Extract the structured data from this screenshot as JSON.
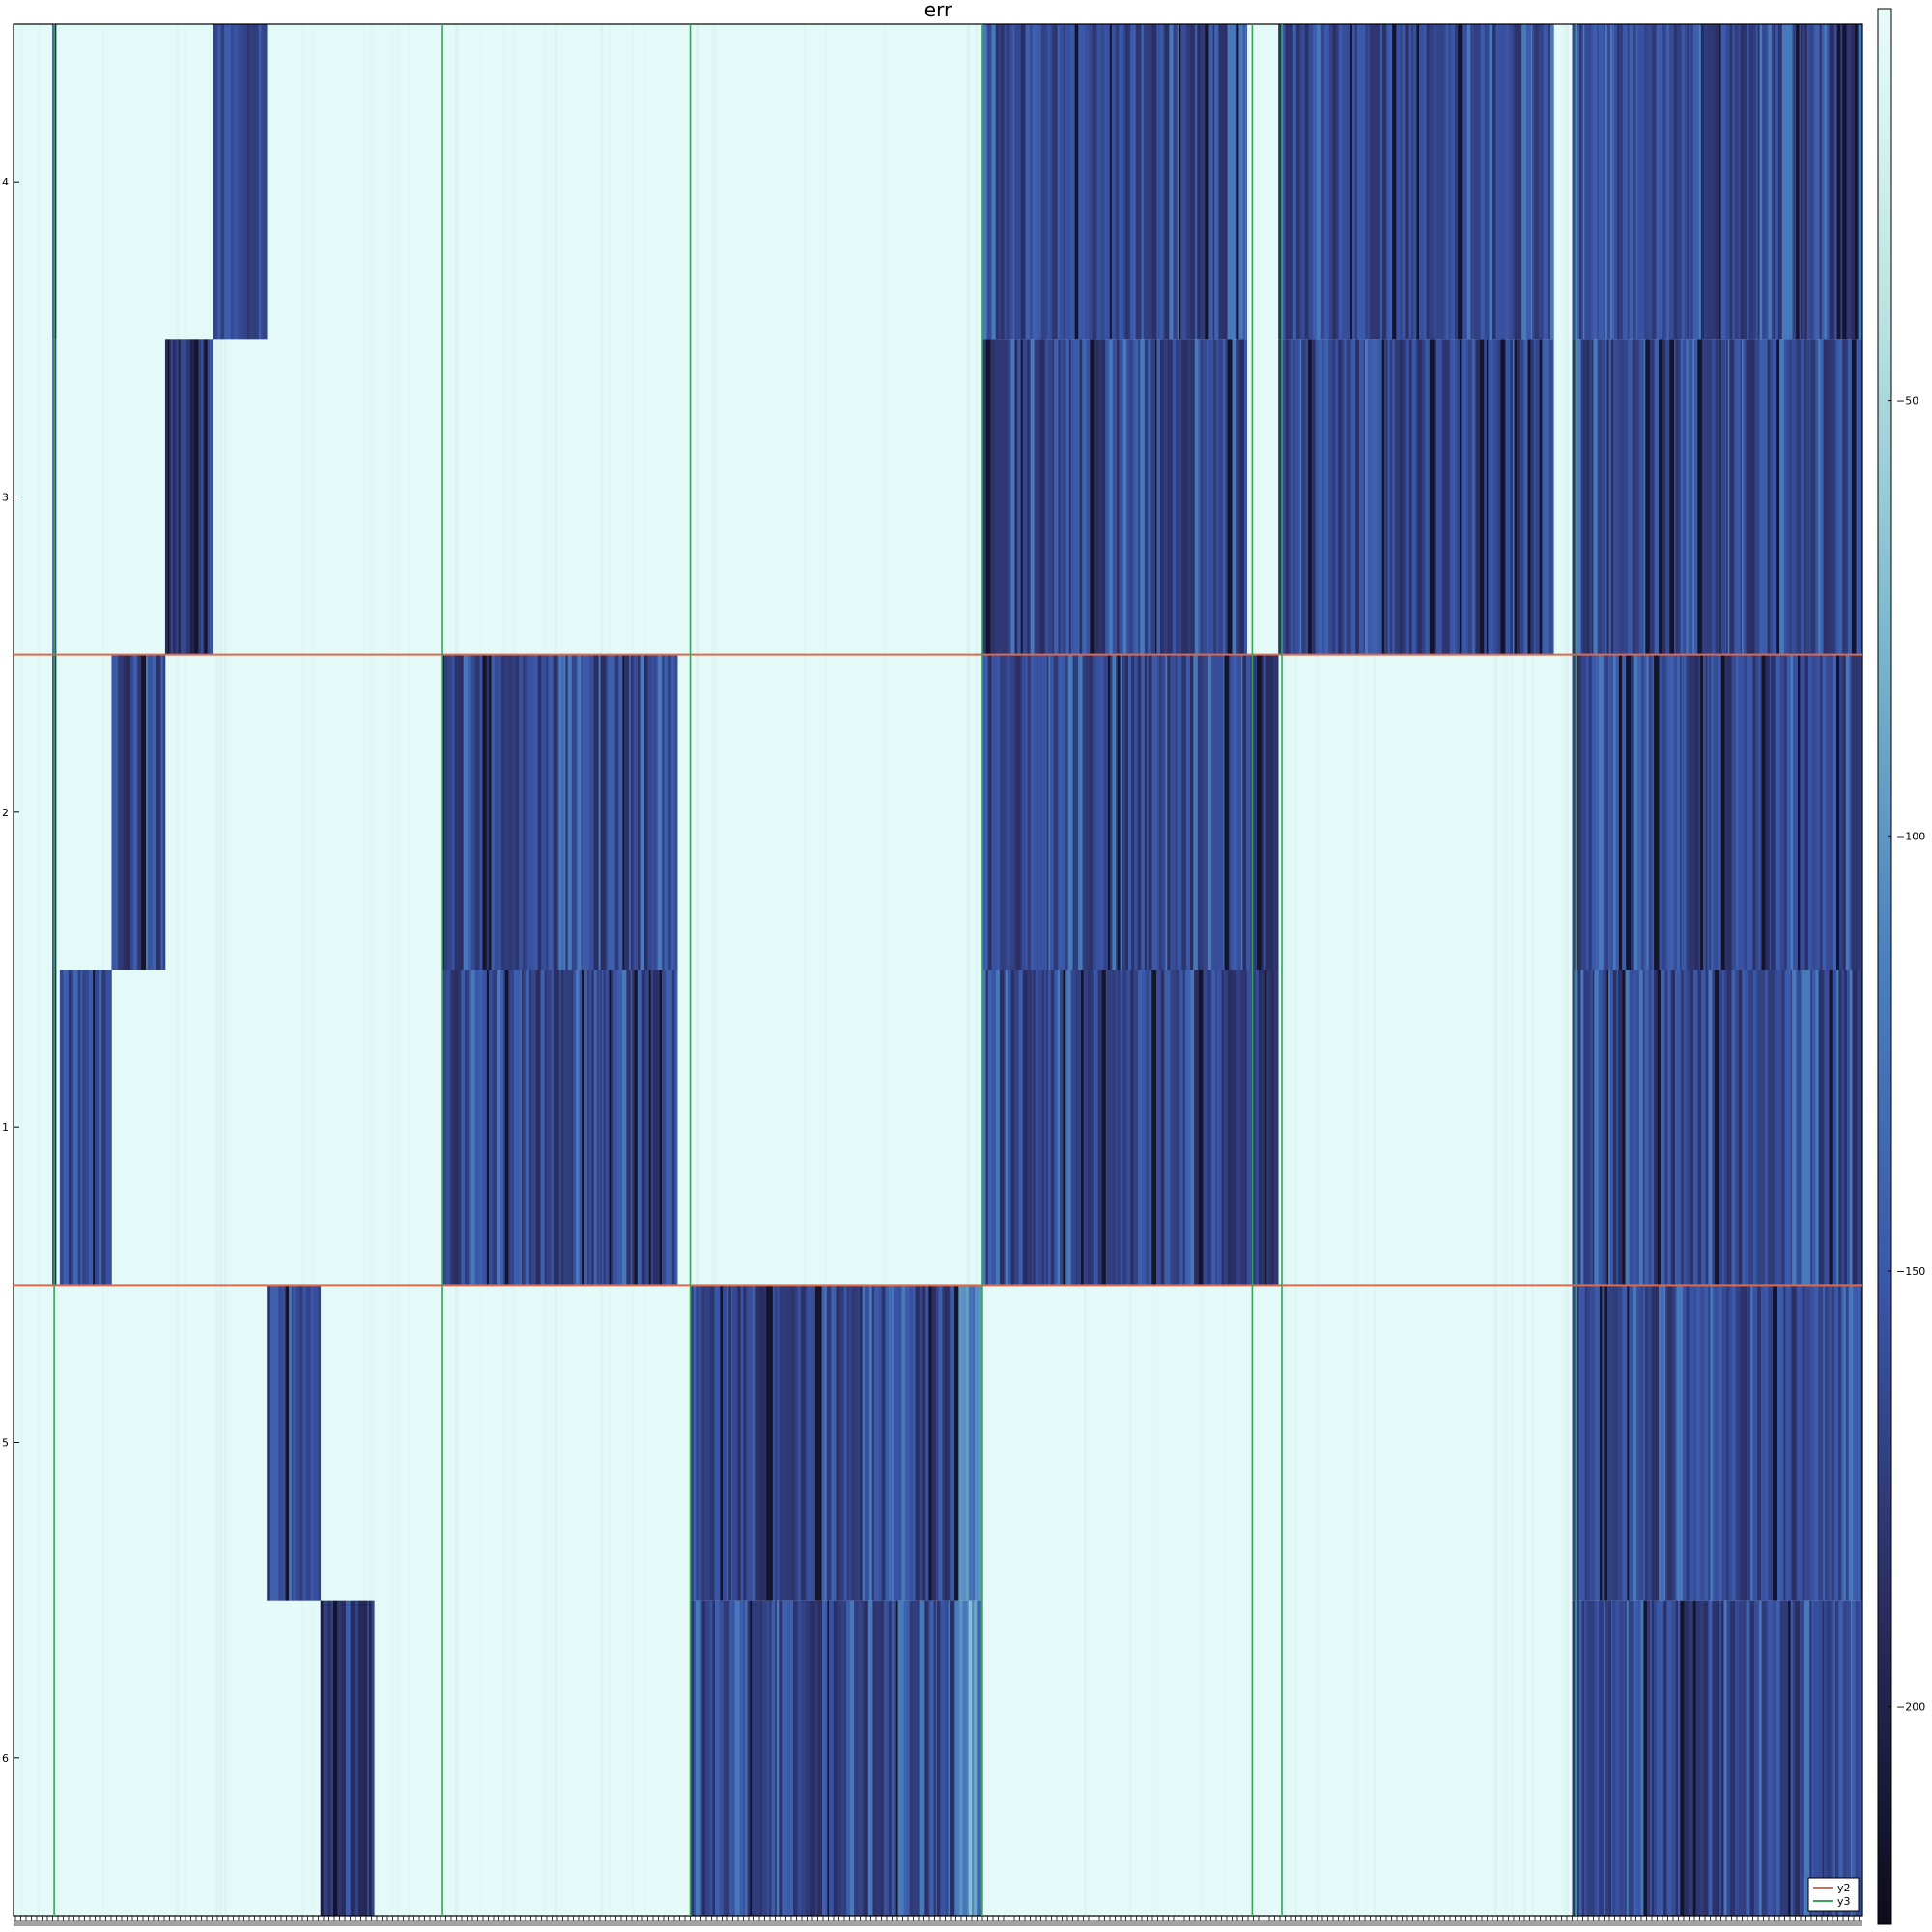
{
  "chart_data": {
    "type": "heatmap",
    "title": "err",
    "xlabel": "",
    "ylabel": "",
    "y_rows_top_to_bottom": [
      "4",
      "3",
      "2",
      "1",
      "5",
      "6"
    ],
    "colorbar": {
      "range": [
        -225,
        -5
      ],
      "ticks": [
        -50,
        -100,
        -150,
        -200
      ],
      "tick_labels": [
        "−50",
        "−100",
        "−150",
        "−200"
      ],
      "colormap": [
        "#0c0c1a",
        "#2a2d60",
        "#3a56a8",
        "#4a7fbd",
        "#79b6cc",
        "#b9e1e1",
        "#e8fcfa"
      ]
    },
    "column_blocks": [
      {
        "start": 0.0,
        "end": 0.021,
        "base": -12,
        "active_rows": []
      },
      {
        "start": 0.021,
        "end": 0.023,
        "base": -175,
        "active_rows": [
          "4",
          "3",
          "2",
          "1"
        ]
      },
      {
        "start": 0.025,
        "end": 0.053,
        "base": -160,
        "active_rows": [
          "1"
        ]
      },
      {
        "start": 0.053,
        "end": 0.082,
        "base": -165,
        "active_rows": [
          "2"
        ]
      },
      {
        "start": 0.082,
        "end": 0.108,
        "base": -175,
        "active_rows": [
          "3"
        ]
      },
      {
        "start": 0.108,
        "end": 0.137,
        "base": -165,
        "active_rows": [
          "4"
        ]
      },
      {
        "start": 0.137,
        "end": 0.166,
        "base": -165,
        "active_rows": [
          "5"
        ]
      },
      {
        "start": 0.166,
        "end": 0.195,
        "base": -190,
        "active_rows": [
          "6"
        ]
      },
      {
        "start": 0.195,
        "end": 0.232,
        "base": -12,
        "active_rows": []
      },
      {
        "start": 0.232,
        "end": 0.359,
        "base": -165,
        "active_rows": [
          "2",
          "1"
        ]
      },
      {
        "start": 0.359,
        "end": 0.366,
        "base": -10,
        "active_rows": []
      },
      {
        "start": 0.366,
        "end": 0.509,
        "base": -165,
        "active_rows": [
          "5",
          "6"
        ]
      },
      {
        "start": 0.509,
        "end": 0.524,
        "base": -115,
        "active_rows": [
          "5",
          "6"
        ]
      },
      {
        "start": 0.524,
        "end": 0.667,
        "base": -165,
        "active_rows": [
          "4",
          "3",
          "2",
          "1"
        ]
      },
      {
        "start": 0.667,
        "end": 0.684,
        "base": -175,
        "active_rows": [
          "2",
          "1"
        ]
      },
      {
        "start": 0.684,
        "end": 0.833,
        "base": -165,
        "active_rows": [
          "4",
          "3"
        ]
      },
      {
        "start": 0.833,
        "end": 0.843,
        "base": -12,
        "active_rows": []
      },
      {
        "start": 0.843,
        "end": 1.0,
        "base": -165,
        "active_rows": [
          "4",
          "3",
          "2",
          "1",
          "5",
          "6"
        ]
      }
    ],
    "horizontal_lines": [
      {
        "series": "y2",
        "after_row": 2,
        "color": "#e0694a"
      },
      {
        "series": "y2",
        "after_row": 4,
        "color": "#e0694a"
      }
    ],
    "vertical_lines": [
      {
        "series": "y3",
        "x_fraction": 0.022,
        "color": "#3aa35a"
      },
      {
        "series": "y3",
        "x_fraction": 0.232,
        "color": "#3aa35a"
      },
      {
        "series": "y3",
        "x_fraction": 0.366,
        "color": "#3aa35a"
      },
      {
        "series": "y3",
        "x_fraction": 0.524,
        "color": "#3aa35a"
      },
      {
        "series": "y3",
        "x_fraction": 0.67,
        "color": "#3aa35a"
      },
      {
        "series": "y3",
        "x_fraction": 0.686,
        "color": "#3aa35a"
      },
      {
        "series": "y3",
        "x_fraction": 0.845,
        "color": "#3aa35a"
      }
    ],
    "legend": {
      "placement": "bottom-right",
      "entries": [
        {
          "label": "y2",
          "color": "#e0694a"
        },
        {
          "label": "y3",
          "color": "#3aa35a"
        }
      ]
    },
    "grid": false
  }
}
